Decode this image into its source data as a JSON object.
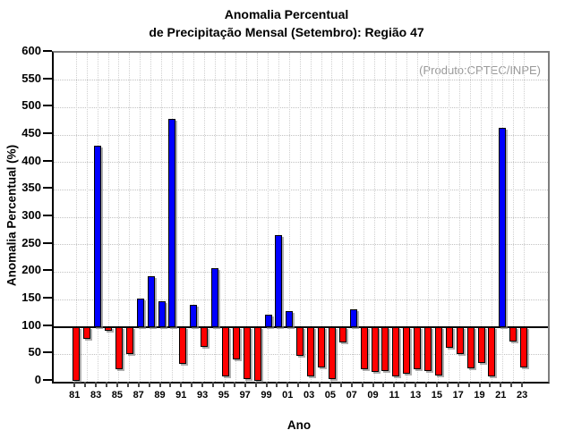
{
  "chart_data": {
    "type": "bar",
    "title": "Anomalia Percentual",
    "subtitle": "de Precipitação Mensal (Setembro): Região 47",
    "annotation": "(Produto:CPTEC/INPE)",
    "xlabel": "Ano",
    "ylabel": "Anomalia Percentual (%)",
    "ylim": [
      0,
      600
    ],
    "ytick_step": 50,
    "yticks": [
      0,
      50,
      100,
      150,
      200,
      250,
      300,
      350,
      400,
      450,
      500,
      550,
      600
    ],
    "xtick_labels": [
      "81",
      "83",
      "85",
      "87",
      "89",
      "91",
      "93",
      "95",
      "97",
      "99",
      "01",
      "03",
      "05",
      "07",
      "09",
      "11",
      "13",
      "15",
      "17",
      "19",
      "21",
      "23"
    ],
    "baseline": 100,
    "grid": "dotted",
    "legend_position": "none",
    "colors": {
      "above_baseline": "#0000ff",
      "below_baseline": "#ff0000",
      "annotation": "#9a9a9a"
    },
    "years": [
      1981,
      1982,
      1983,
      1984,
      1985,
      1986,
      1987,
      1988,
      1989,
      1990,
      1991,
      1992,
      1993,
      1994,
      1995,
      1996,
      1997,
      1998,
      1999,
      2000,
      2001,
      2002,
      2003,
      2004,
      2005,
      2006,
      2007,
      2008,
      2009,
      2010,
      2011,
      2012,
      2013,
      2014,
      2015,
      2016,
      2017,
      2018,
      2019,
      2020,
      2021,
      2022,
      2023
    ],
    "values": [
      2,
      78,
      430,
      93,
      23,
      51,
      151,
      192,
      147,
      480,
      33,
      140,
      63,
      207,
      10,
      40,
      5,
      2,
      122,
      267,
      129,
      48,
      9,
      26,
      5,
      71,
      132,
      22,
      18,
      19,
      10,
      15,
      22,
      20,
      11,
      62,
      51,
      24,
      35,
      10,
      463,
      74,
      26
    ]
  }
}
